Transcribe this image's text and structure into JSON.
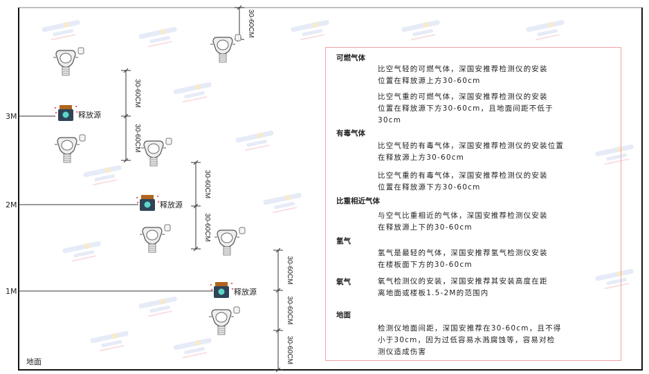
{
  "watermark": {
    "brand": "SINGOAN",
    "cn": "深国安"
  },
  "heights": [
    "3M",
    "2M",
    "1M"
  ],
  "ground_label": "地面",
  "source_label": "释放源",
  "dimension_label": "30-60CM",
  "notes": {
    "combustible": {
      "title": "可燃气体",
      "p1": [
        "比空气轻的可燃气体，深国安推荐检测仪的安装",
        "位置在释放源上方30-60cm"
      ],
      "p2": [
        "比空气重的可燃气体，深国安推荐检测仪的安装",
        "位置在释放源下方30-60cm，且地面间距不低于",
        "30cm"
      ]
    },
    "toxic": {
      "title": "有毒气体",
      "p1": [
        "比空气轻的有毒气体，深国安推荐检测仪的安装位置",
        "在释放源上方30-60cm"
      ],
      "p2": [
        "比空气重的有毒气体，深国安推荐检测仪的安装",
        "位置在释放源下方30-60cm"
      ]
    },
    "similar": {
      "title": "比重相近气体",
      "p1": [
        "与空气比重相近的气体，深国安推荐检测仪安装",
        "在释放源上下的30-60cm"
      ]
    },
    "hydrogen": {
      "title": "氢气",
      "p1": [
        "氢气是最轻的气体，深国安推荐氢气检测仪安装",
        "在楼板面下方的30-60cm"
      ]
    },
    "oxygen": {
      "title": "氧气",
      "p1": [
        "氧气检测仪的安装，深国安推荐其安装高度在距",
        "离地面或楼板1.5-2M的范围内"
      ]
    },
    "ground": {
      "title": "地面",
      "p1": [
        "检测仪地面间距，深国安推荐在30-60cm，且不得",
        "小于30cm，因为过低容易水溅腐蚀等，容易对检",
        "测仪造成伤害"
      ]
    }
  }
}
